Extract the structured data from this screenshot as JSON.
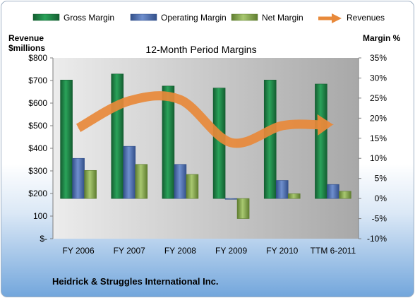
{
  "chart_data": {
    "type": "bar",
    "title": "12-Month Period Margins",
    "left_axis_title_line1": "Revenue",
    "left_axis_title_line2": "$millions",
    "right_axis_title": "Margin %",
    "footer": "Heidrick & Struggles International Inc.",
    "categories": [
      "FY 2006",
      "FY 2007",
      "FY 2008",
      "FY 2009",
      "FY 2010",
      "TTM 6-2011"
    ],
    "left_ticks": [
      "$-",
      "100",
      "$200",
      "$300",
      "$400",
      "$500",
      "$600",
      "$700",
      "$800"
    ],
    "right_ticks": [
      "-10%",
      "-5%",
      "0%",
      "5%",
      "10%",
      "15%",
      "20%",
      "25%",
      "30%",
      "35%"
    ],
    "ylim_left": [
      0,
      800
    ],
    "ylim_right": [
      -10,
      35
    ],
    "legend_position": "top",
    "grid": false,
    "series": [
      {
        "name": "Gross Margin",
        "axis": "right",
        "kind": "bar",
        "color": "#1f8a4a",
        "values": [
          29.5,
          31.0,
          28.0,
          27.5,
          29.5,
          28.5
        ]
      },
      {
        "name": "Operating Margin",
        "axis": "right",
        "kind": "bar",
        "color": "#4f6fb0",
        "values": [
          10.0,
          13.0,
          8.5,
          -0.2,
          4.5,
          3.5
        ]
      },
      {
        "name": "Net Margin",
        "axis": "right",
        "kind": "bar",
        "color": "#8db050",
        "values": [
          7.0,
          8.5,
          6.0,
          -5.0,
          1.2,
          1.8
        ]
      },
      {
        "name": "Revenues",
        "axis": "left",
        "kind": "line",
        "color": "#e8893a",
        "values": [
          490,
          610,
          615,
          425,
          500,
          505
        ]
      }
    ]
  }
}
